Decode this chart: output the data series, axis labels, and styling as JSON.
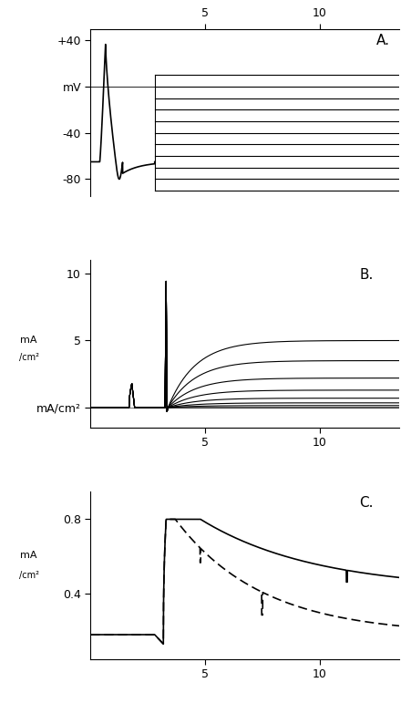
{
  "panel_A": {
    "label": "A.",
    "yticks": [
      40,
      0,
      -40,
      -80
    ],
    "yticklabels": [
      "+40",
      "mV",
      "-40",
      "-80"
    ],
    "ylim": [
      -95,
      50
    ],
    "xlim": [
      0,
      13.5
    ],
    "xticks": [
      5,
      10
    ],
    "step_voltages": [
      -90,
      -80,
      -70,
      -60,
      -50,
      -40,
      -30,
      -20,
      -10,
      0,
      10
    ],
    "step_start": 2.8,
    "step_end": 13.5
  },
  "panel_B": {
    "label": "B.",
    "yticks": [
      0,
      5,
      10
    ],
    "yticklabels": [
      "mA/cm²",
      "5",
      "10"
    ],
    "ylim": [
      -1.5,
      11
    ],
    "xlim": [
      0,
      13.5
    ],
    "xticks": [
      5,
      10
    ],
    "spike_x": 3.3,
    "spike_height": 9.5,
    "small_peak_x": 1.8,
    "small_peak_y": 1.8,
    "ss_levels": [
      0.0,
      0.15,
      0.35,
      0.7,
      1.3,
      2.2,
      3.5,
      5.0
    ]
  },
  "panel_C": {
    "label": "C.",
    "yticks": [
      0.4,
      0.8
    ],
    "yticklabels": [
      "0.4",
      "0.8"
    ],
    "ylim": [
      0.05,
      0.95
    ],
    "xlim": [
      0,
      13.5
    ],
    "xticks": [
      5,
      10
    ],
    "xtick_labels": [
      "5",
      "10"
    ],
    "spike_x": 3.3
  },
  "fig_color": "#ffffff",
  "line_color": "#000000",
  "dpi": 100
}
